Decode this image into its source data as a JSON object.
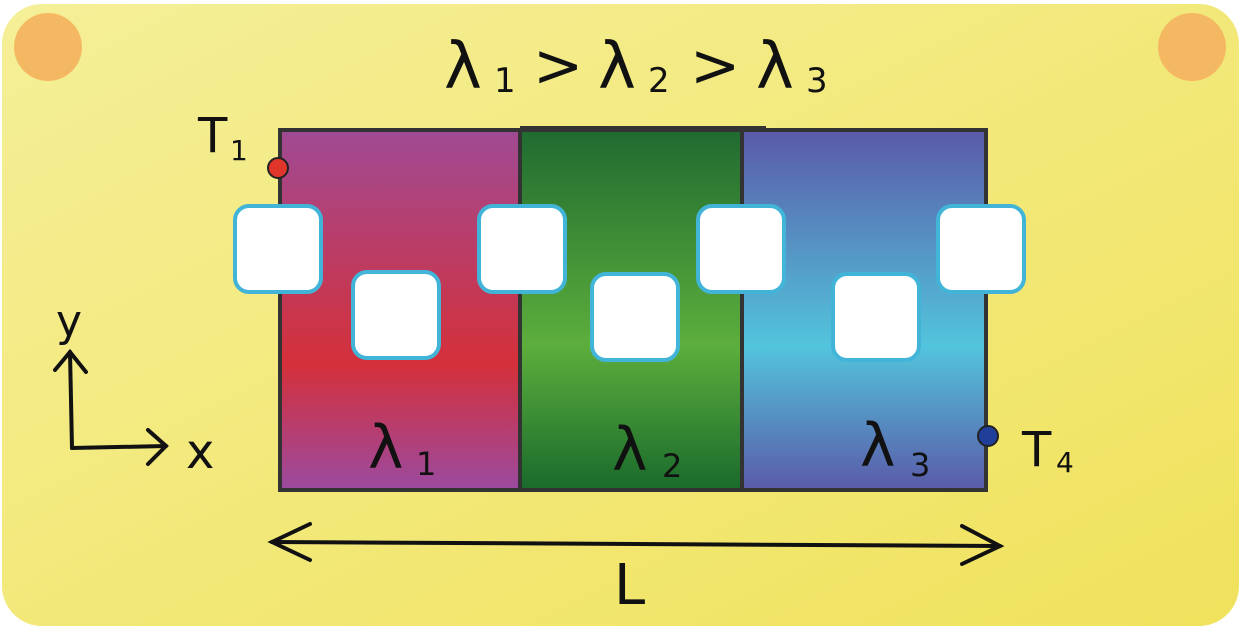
{
  "diagram": {
    "title": {
      "lambda_symbol": "λ",
      "sub1": "1",
      "gt1": ">",
      "sub2": "2",
      "gt2": ">",
      "sub3": "3"
    },
    "layers": [
      {
        "symbol": "λ",
        "subscript": "1",
        "top_color": "#a04a94",
        "mid_color": "#d4303a",
        "bottom_color": "#9b4aa0"
      },
      {
        "symbol": "λ",
        "subscript": "2",
        "top_color": "#1f6a30",
        "mid_color": "#5cae3c",
        "bottom_color": "#1a6a2c"
      },
      {
        "symbol": "λ",
        "subscript": "3",
        "top_color": "#5a5aa8",
        "mid_color": "#52c4dc",
        "bottom_color": "#5a5aa8"
      }
    ],
    "temperature_points": [
      {
        "letter": "T",
        "subscript": "1",
        "color": "#e0352b"
      },
      {
        "letter": "T",
        "subscript": "4",
        "color": "#1f3f9a"
      }
    ],
    "axes": {
      "x": "x",
      "y": "y"
    },
    "length_label": "L",
    "colors": {
      "background": "#f3ea7d",
      "corner_dots": "#f5b862",
      "hole_fill": "#ffffff",
      "hole_border": "#42b4d8",
      "outline": "#333333"
    }
  }
}
